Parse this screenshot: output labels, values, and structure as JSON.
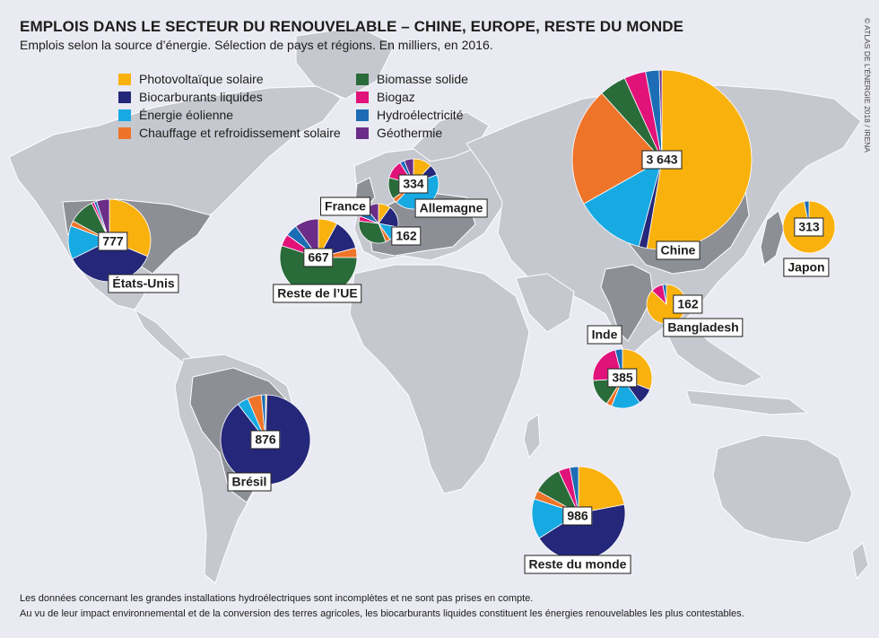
{
  "header": {
    "title": "EMPLOIS DANS LE SECTEUR DU RENOUVELABLE – CHINE, EUROPE, RESTE DU MONDE",
    "subtitle": "Emplois selon la source d’énergie. Sélection de pays et régions. En milliers, en 2016.",
    "credit": "© ATLAS DE L'ÉNERGIE 2018 / IRENA"
  },
  "legend": {
    "col1": [
      {
        "label": "Photovoltaïque solaire",
        "color": "#f9b10d"
      },
      {
        "label": "Biocarburants liquides",
        "color": "#25277a"
      },
      {
        "label": "Énergie éolienne",
        "color": "#17a9e2"
      },
      {
        "label": "Chauffage et refroidissement solaire",
        "color": "#ee7429"
      }
    ],
    "col2": [
      {
        "label": "Biomasse solide",
        "color": "#2a6b3a"
      },
      {
        "label": "Biogaz",
        "color": "#e1127a"
      },
      {
        "label": "Hydroélectricité",
        "color": "#1c6db5"
      },
      {
        "label": "Géothermie",
        "color": "#6b2d87"
      }
    ]
  },
  "chart_data": {
    "type": "pie",
    "unit": "milliers d'emplois",
    "categories": [
      "Photovoltaïque solaire",
      "Biocarburants liquides",
      "Énergie éolienne",
      "Chauffage et refroidissement solaire",
      "Biomasse solide",
      "Biogaz",
      "Hydroélectricité",
      "Géothermie"
    ],
    "colors": [
      "#f9b10d",
      "#25277a",
      "#17a9e2",
      "#ee7429",
      "#2a6b3a",
      "#e1127a",
      "#1c6db5",
      "#6b2d87"
    ],
    "regions": [
      {
        "name": "Chine",
        "value_label": "3 643",
        "total": 3643,
        "shares": [
          0.54,
          0.015,
          0.13,
          0.22,
          0.05,
          0.04,
          0.025,
          0.005
        ]
      },
      {
        "name": "États-Unis",
        "value_label": "777",
        "total": 777,
        "shares": [
          0.31,
          0.36,
          0.13,
          0.02,
          0.1,
          0.01,
          0.01,
          0.05
        ]
      },
      {
        "name": "Brésil",
        "value_label": "876",
        "total": 876,
        "shares": [
          0.005,
          0.89,
          0.04,
          0.05,
          0.0,
          0.0,
          0.015,
          0.0
        ]
      },
      {
        "name": "Reste de l’UE",
        "value_label": "667",
        "total": 667,
        "shares": [
          0.08,
          0.13,
          0.0,
          0.04,
          0.55,
          0.05,
          0.05,
          0.1
        ]
      },
      {
        "name": "France",
        "value_label": "162",
        "total": 162,
        "shares": [
          0.1,
          0.18,
          0.12,
          0.04,
          0.33,
          0.04,
          0.08,
          0.11
        ]
      },
      {
        "name": "Allemagne",
        "value_label": "334",
        "total": 334,
        "shares": [
          0.12,
          0.07,
          0.43,
          0.03,
          0.14,
          0.12,
          0.03,
          0.06
        ]
      },
      {
        "name": "Japon",
        "value_label": "313",
        "total": 313,
        "shares": [
          0.97,
          0.0,
          0.0,
          0.0,
          0.0,
          0.0,
          0.03,
          0.0
        ]
      },
      {
        "name": "Bangladesh",
        "value_label": "162",
        "total": 162,
        "shares": [
          0.87,
          0.0,
          0.0,
          0.0,
          0.0,
          0.1,
          0.03,
          0.0
        ]
      },
      {
        "name": "Inde",
        "value_label": "385",
        "total": 385,
        "shares": [
          0.31,
          0.09,
          0.16,
          0.03,
          0.15,
          0.22,
          0.04,
          0.0
        ]
      },
      {
        "name": "Reste du monde",
        "value_label": "986",
        "total": 986,
        "shares": [
          0.22,
          0.44,
          0.14,
          0.03,
          0.1,
          0.04,
          0.03,
          0.0
        ]
      }
    ]
  },
  "footnotes": [
    "Les données concernant les grandes installations hydroélectriques sont incomplètes et ne sont pas prises en compte.",
    "Au vu de leur impact environnemental et de la conversion des terres agricoles, les biocarburants liquides constituent les énergies renouvelables les plus contestables."
  ]
}
